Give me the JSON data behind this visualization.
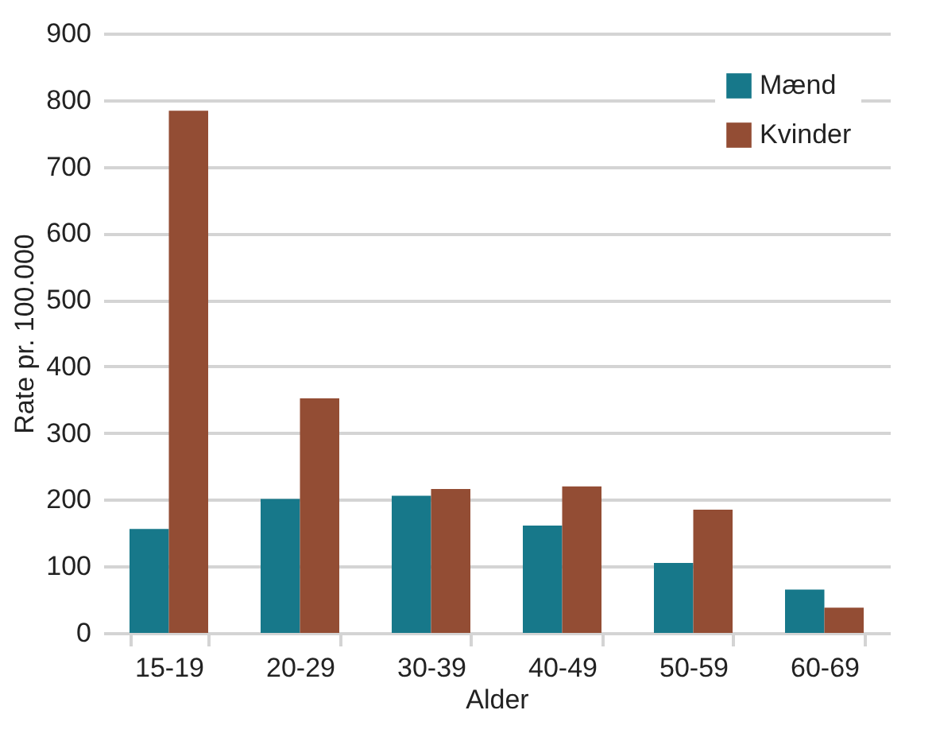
{
  "chart_data": {
    "type": "bar",
    "xlabel": "Alder",
    "ylabel": "Rate pr. 100.000",
    "categories": [
      "15-19",
      "20-29",
      "30-39",
      "40-49",
      "50-59",
      "60-69"
    ],
    "series": [
      {
        "name": "Mænd",
        "color": "#17788a",
        "values": [
          156,
          201,
          206,
          161,
          105,
          65
        ]
      },
      {
        "name": "Kvinder",
        "color": "#934d34",
        "values": [
          784,
          352,
          216,
          220,
          185,
          38
        ]
      }
    ],
    "ylim": [
      0,
      900
    ],
    "yticks": [
      0,
      100,
      200,
      300,
      400,
      500,
      600,
      700,
      800,
      900
    ],
    "grid": "y",
    "legend": "top right"
  }
}
